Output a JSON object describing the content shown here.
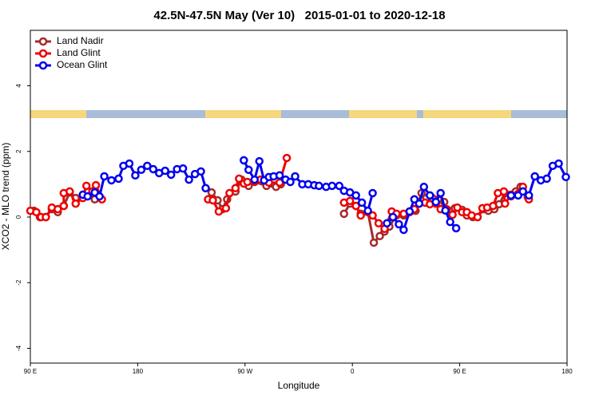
{
  "chart_data": {
    "type": "line",
    "title": "42.5N-47.5N May (Ver 10)   2015-01-01 to 2020-12-18",
    "xlabel": "Longitude",
    "ylabel": "XCO2 - MLO trend (ppm)",
    "xlim": [
      90,
      540
    ],
    "ylim": [
      -4.45,
      5.69
    ],
    "xticks": [
      {
        "value": 90,
        "label": "90 E"
      },
      180,
      {
        "value": 270,
        "label": "90 W"
      },
      {
        "value": 360,
        "label": "0"
      },
      {
        "value": 450,
        "label": "90 E"
      },
      {
        "value": 540,
        "label": "180"
      }
    ],
    "yticks": [
      -4,
      -2,
      0,
      2,
      4
    ],
    "grid": false,
    "legend": "top-left",
    "series": [
      {
        "name": "Land Nadir",
        "color": "#a52a2a",
        "x": [
          93,
          98,
          103,
          108,
          113,
          118,
          123,
          128,
          134,
          138,
          144,
          190,
          242,
          247,
          251,
          255,
          262,
          267,
          273,
          278,
          288,
          296,
          300,
          330,
          353,
          358,
          363,
          367,
          373,
          378,
          383,
          387,
          391,
          397,
          403,
          408,
          413,
          418,
          422,
          427,
          432,
          437,
          441,
          446,
          452,
          456,
          461,
          465,
          470,
          474,
          479,
          483,
          488,
          493,
          497,
          501,
          507
        ],
        "values": [
          0.19,
          0,
          0,
          0.24,
          0.15,
          0.34,
          0.75,
          0.58,
          0.68,
          0.78,
          0.54,
          null,
          0.75,
          0.51,
          0.24,
          0.54,
          0.78,
          1.14,
          0.95,
          1.07,
          0.95,
          0.92,
          1.0,
          null,
          0.1,
          0.41,
          0.34,
          0.1,
          0.15,
          -0.78,
          -0.58,
          -0.44,
          -0.29,
          0.05,
          0.05,
          0.17,
          0.19,
          0.73,
          0.58,
          0.58,
          0.54,
          0.46,
          0.19,
          0.27,
          0.22,
          0.05,
          0,
          0,
          0.24,
          0.19,
          0.24,
          0.39,
          0.73,
          0.63,
          0.78,
          0.92,
          0.61
        ]
      },
      {
        "name": "Land Glint",
        "color": "#ee0000",
        "x": [
          90,
          95,
          99,
          103,
          108,
          113,
          118,
          118,
          123,
          128,
          134,
          137,
          142,
          145,
          150,
          195,
          239,
          243,
          248,
          254,
          257,
          262,
          265,
          269,
          272,
          278,
          283,
          290,
          299,
          305,
          330,
          353,
          358,
          363,
          367,
          373,
          377,
          382,
          387,
          393,
          397,
          403,
          408,
          412,
          416,
          421,
          425,
          430,
          434,
          439,
          444,
          448,
          452,
          456,
          460,
          465,
          469,
          473,
          478,
          482,
          487,
          488,
          493,
          499,
          503,
          508
        ],
        "values": [
          0.19,
          0.15,
          0,
          0,
          0.29,
          0.24,
          0.34,
          0.73,
          0.78,
          0.41,
          0.58,
          0.95,
          0.78,
          0.97,
          0.54,
          null,
          0.54,
          0.51,
          0.17,
          0.27,
          0.73,
          0.88,
          1.17,
          1.02,
          1.07,
          1.09,
          1.14,
          1.05,
          1.05,
          1.8,
          null,
          0.44,
          0.49,
          0.34,
          0.05,
          0.15,
          0.05,
          -0.19,
          -0.36,
          0.17,
          0.1,
          0.1,
          0.15,
          0.24,
          0.41,
          0.44,
          0.39,
          0.41,
          0.24,
          0.24,
          0.07,
          0.29,
          0.15,
          0.15,
          0.05,
          0,
          0.27,
          0.29,
          0.34,
          0.73,
          0.78,
          0.41,
          0.68,
          0.71,
          0.92,
          0.54
        ]
      },
      {
        "name": "Ocean Glint",
        "color": "#0000ee",
        "x": [
          134,
          138,
          144,
          148,
          152,
          158,
          164,
          168,
          173,
          178,
          183,
          188,
          193,
          198,
          203,
          208,
          213,
          218,
          223,
          228,
          233,
          237,
          250,
          269,
          273,
          278,
          282,
          286,
          290,
          294,
          299,
          304,
          308,
          312,
          318,
          323,
          328,
          332,
          338,
          343,
          349,
          353,
          358,
          363,
          368,
          373,
          377,
          380,
          389,
          394,
          399,
          403,
          408,
          412,
          416,
          420,
          425,
          430,
          434,
          438,
          442,
          447,
          470,
          493,
          499,
          503,
          508,
          513,
          518,
          523,
          528,
          533,
          539
        ],
        "values": [
          0.68,
          0.63,
          0.75,
          0.63,
          1.24,
          1.12,
          1.17,
          1.56,
          1.63,
          1.27,
          1.44,
          1.56,
          1.46,
          1.34,
          1.41,
          1.29,
          1.46,
          1.48,
          1.14,
          1.31,
          1.39,
          0.88,
          null,
          1.73,
          1.44,
          1.14,
          1.7,
          1.12,
          1.22,
          1.24,
          1.27,
          1.14,
          1.07,
          1.24,
          1.0,
          1.0,
          0.97,
          0.95,
          0.92,
          0.95,
          0.95,
          0.8,
          0.75,
          0.66,
          0.44,
          0.19,
          0.73,
          null,
          -0.19,
          0,
          -0.22,
          -0.39,
          0.17,
          0.54,
          0.41,
          0.92,
          0.66,
          0.46,
          0.73,
          0.2,
          -0.15,
          -0.34,
          null,
          0.66,
          0.66,
          0.78,
          0.66,
          1.24,
          1.12,
          1.17,
          1.56,
          1.63,
          1.22
        ]
      }
    ]
  }
}
